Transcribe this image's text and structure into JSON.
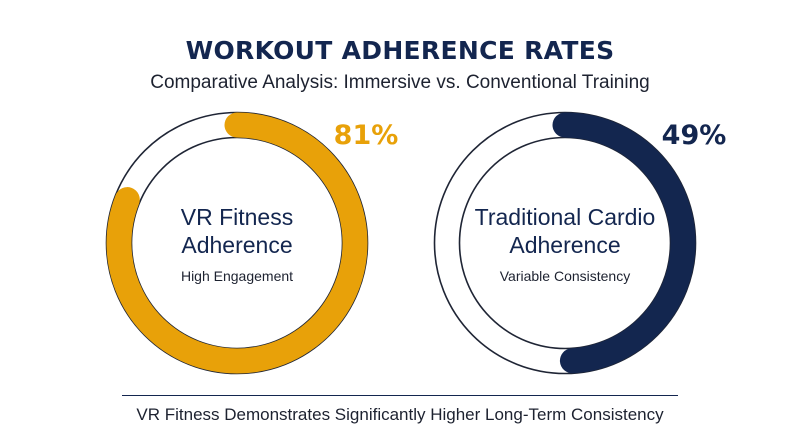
{
  "title": "WORKOUT ADHERENCE RATES",
  "subtitle": "Comparative Analysis: Immersive vs. Conventional Training",
  "footer": "VR Fitness Demonstrates Significantly Higher Long-Term Consistency",
  "colors": {
    "vr": "#e8a109",
    "traditional": "#13264f",
    "track": "#1f2535"
  },
  "chart_data": {
    "type": "pie",
    "subtype": "donut-progress",
    "title": "WORKOUT ADHERENCE RATES",
    "subtitle": "Comparative Analysis: Immersive vs. Conventional Training",
    "series": [
      {
        "name": "VR Fitness Adherence",
        "value": 81,
        "label": "81%",
        "caption": "High Engagement"
      },
      {
        "name": "Traditional Cardio Adherence",
        "value": 49,
        "label": "49%",
        "caption": "Variable Consistency"
      }
    ]
  },
  "rings": [
    {
      "line1": "VR Fitness",
      "line2": "Adherence",
      "caption": "High Engagement",
      "pct_label": "81%"
    },
    {
      "line1": "Traditional Cardio",
      "line2": "Adherence",
      "caption": "Variable Consistency",
      "pct_label": "49%"
    }
  ]
}
